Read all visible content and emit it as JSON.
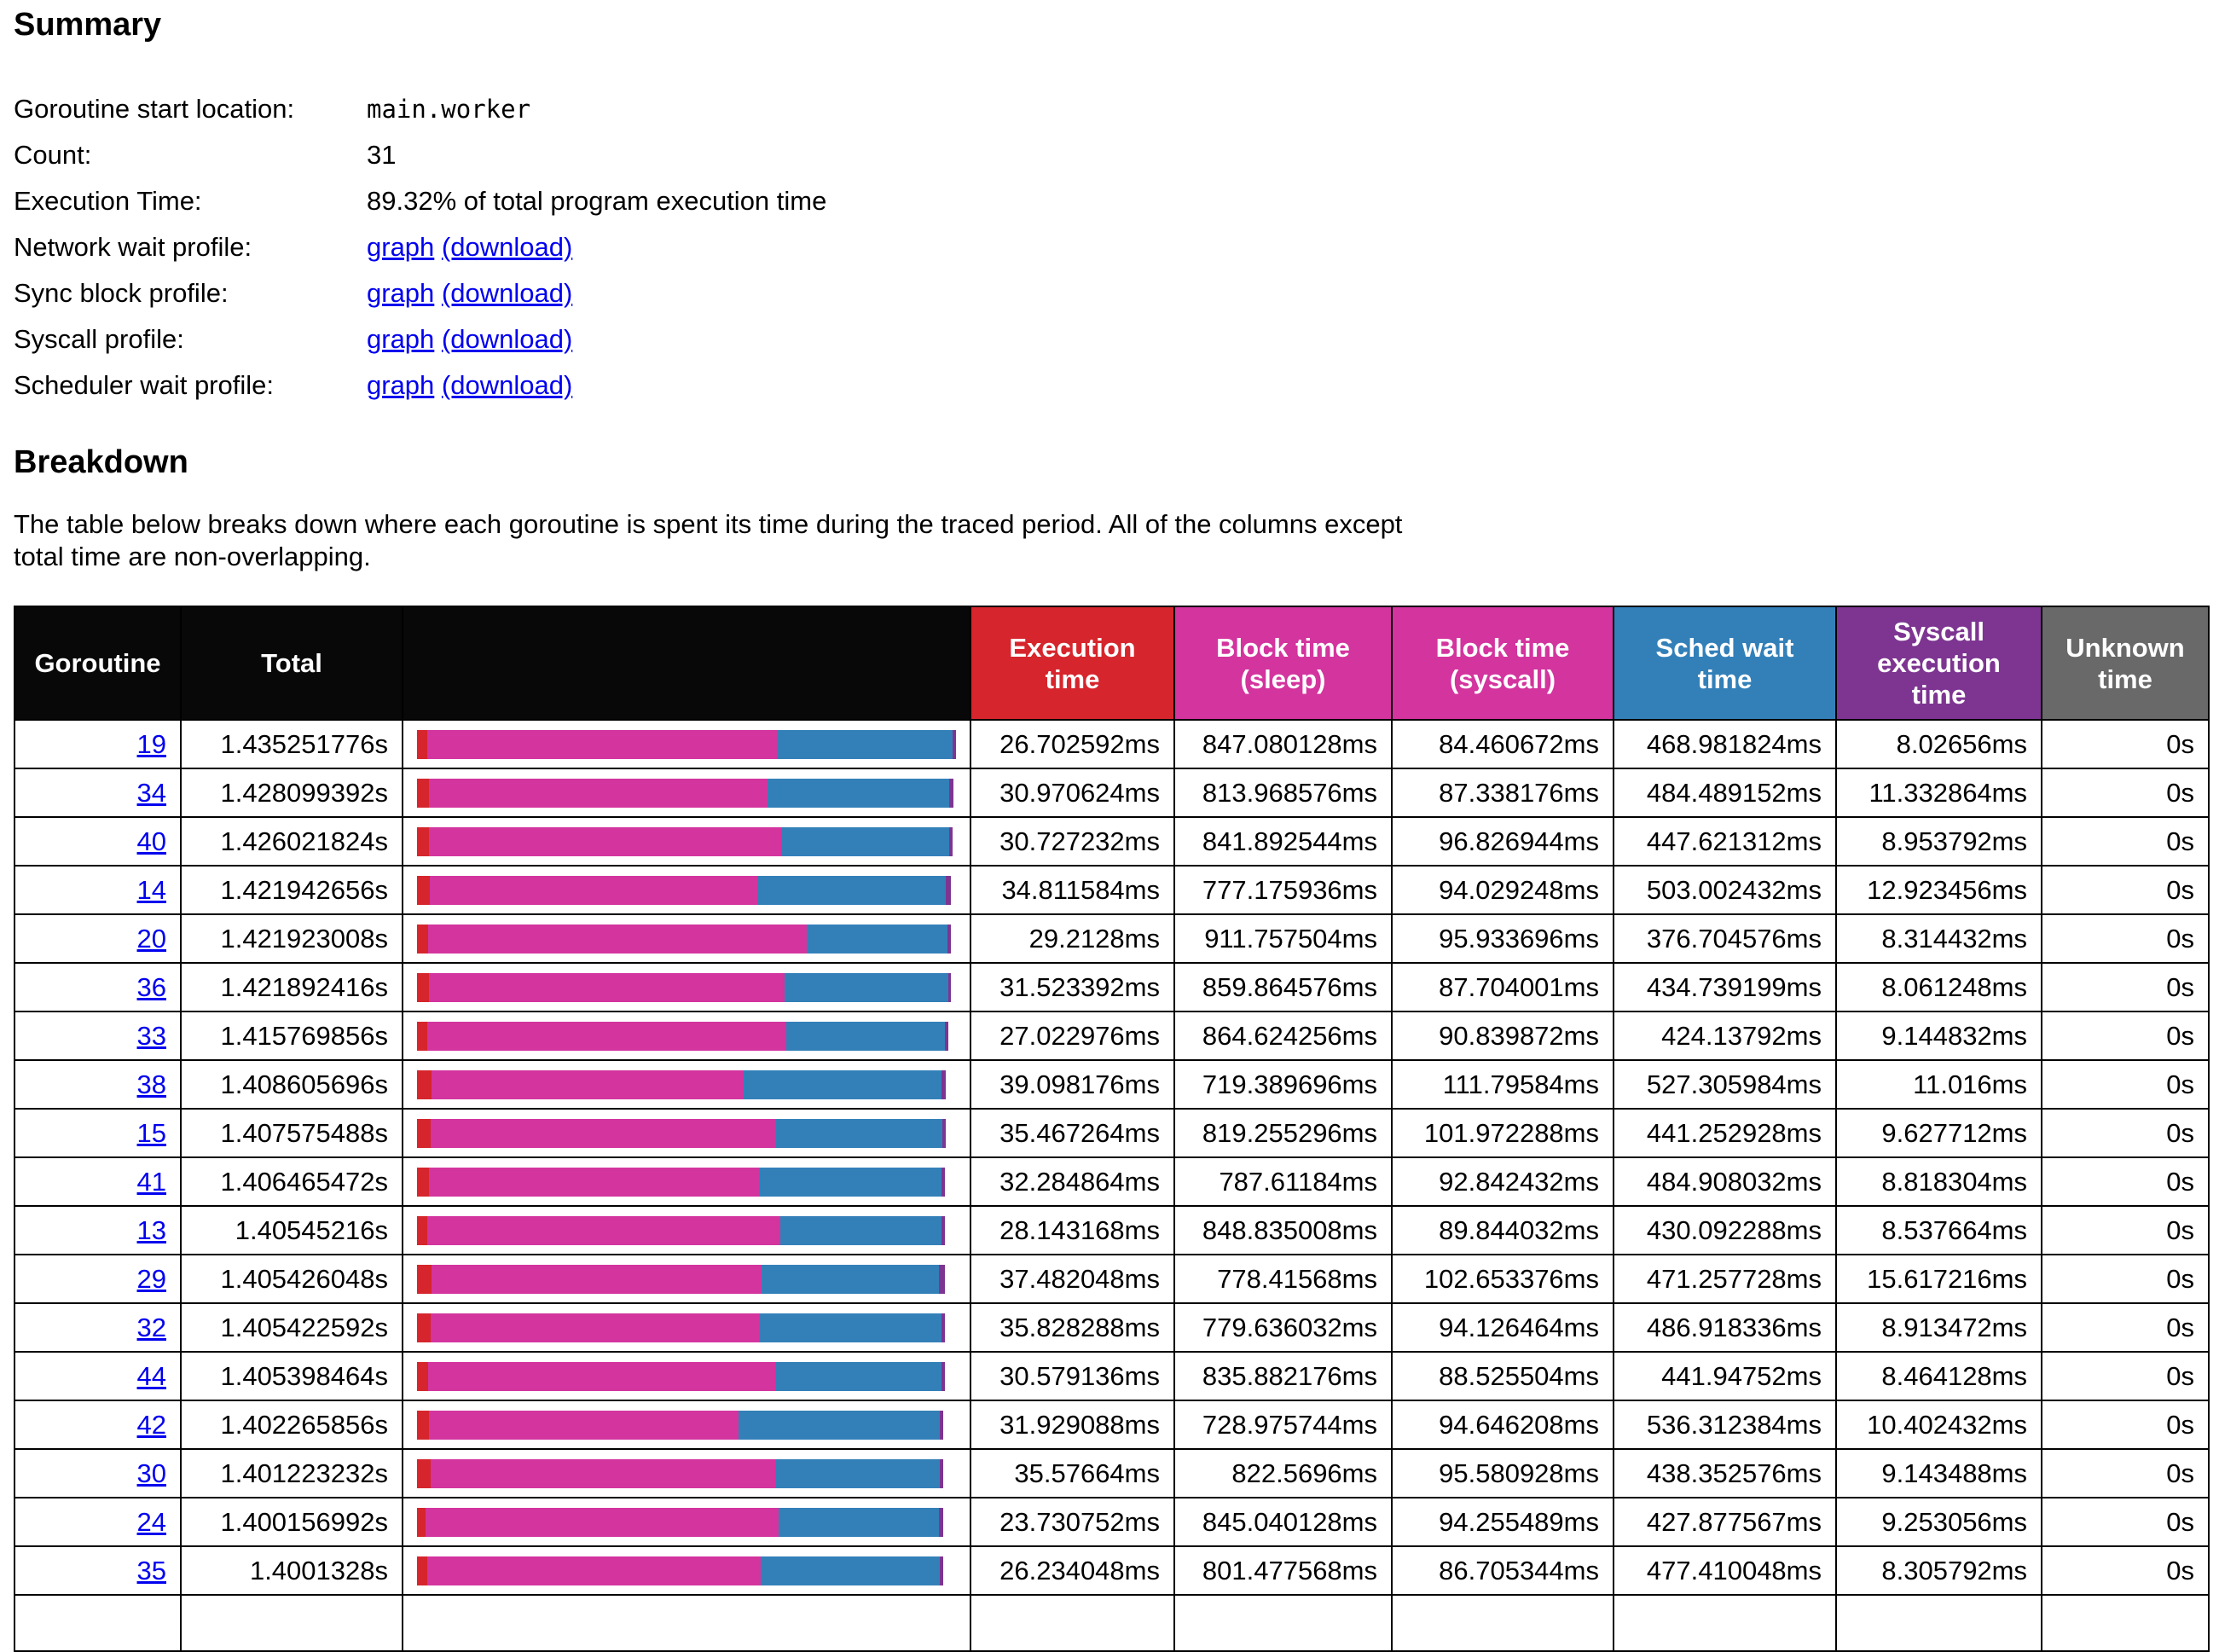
{
  "page": {
    "background": "#ffffff"
  },
  "summary": {
    "title": "Summary",
    "rows": [
      {
        "label": "Goroutine start location:",
        "value": "main.worker"
      },
      {
        "label": "Count:",
        "value": "31"
      },
      {
        "label": "Execution Time:",
        "value": "89.32% of total program execution time"
      },
      {
        "label": "Network wait profile:",
        "link_graph": "graph",
        "link_download": "(download)"
      },
      {
        "label": "Sync block profile:",
        "link_graph": "graph",
        "link_download": "(download)"
      },
      {
        "label": "Syscall profile:",
        "link_graph": "graph",
        "link_download": "(download)"
      },
      {
        "label": "Scheduler wait profile:",
        "link_graph": "graph",
        "link_download": "(download)"
      }
    ]
  },
  "breakdown": {
    "title": "Breakdown",
    "description_line1": "The table below breaks down where each goroutine is spent its time during the traced period. All of the columns except",
    "description_line2": "total time are non-overlapping."
  },
  "table": {
    "headers": {
      "goroutine": "Goroutine",
      "total": "Total",
      "bar": "",
      "exec": "Execution time",
      "block_sleep": "Block time (sleep)",
      "block_syscall": "Block time (syscall)",
      "sched_wait": "Sched wait time",
      "syscall_exec": "Syscall execution time",
      "unknown": "Unknown time"
    },
    "colors": {
      "header_dark": "#080808",
      "exec": "#d6252c",
      "block_sleep": "#d3349e",
      "block_syscall": "#d3349e",
      "sched_wait": "#3380b9",
      "syscall_exec": "#7d3591",
      "unknown": "#696969",
      "link": "#0000ee"
    },
    "rows": [
      {
        "id": "19",
        "total": "1.435251776s",
        "exec": "26.702592ms",
        "block_sleep": "847.080128ms",
        "block_syscall": "84.460672ms",
        "sched_wait": "468.981824ms",
        "syscall_exec": "8.02656ms",
        "unknown": "0s"
      },
      {
        "id": "34",
        "total": "1.428099392s",
        "exec": "30.970624ms",
        "block_sleep": "813.968576ms",
        "block_syscall": "87.338176ms",
        "sched_wait": "484.489152ms",
        "syscall_exec": "11.332864ms",
        "unknown": "0s"
      },
      {
        "id": "40",
        "total": "1.426021824s",
        "exec": "30.727232ms",
        "block_sleep": "841.892544ms",
        "block_syscall": "96.826944ms",
        "sched_wait": "447.621312ms",
        "syscall_exec": "8.953792ms",
        "unknown": "0s"
      },
      {
        "id": "14",
        "total": "1.421942656s",
        "exec": "34.811584ms",
        "block_sleep": "777.175936ms",
        "block_syscall": "94.029248ms",
        "sched_wait": "503.002432ms",
        "syscall_exec": "12.923456ms",
        "unknown": "0s"
      },
      {
        "id": "20",
        "total": "1.421923008s",
        "exec": "29.2128ms",
        "block_sleep": "911.757504ms",
        "block_syscall": "95.933696ms",
        "sched_wait": "376.704576ms",
        "syscall_exec": "8.314432ms",
        "unknown": "0s"
      },
      {
        "id": "36",
        "total": "1.421892416s",
        "exec": "31.523392ms",
        "block_sleep": "859.864576ms",
        "block_syscall": "87.704001ms",
        "sched_wait": "434.739199ms",
        "syscall_exec": "8.061248ms",
        "unknown": "0s"
      },
      {
        "id": "33",
        "total": "1.415769856s",
        "exec": "27.022976ms",
        "block_sleep": "864.624256ms",
        "block_syscall": "90.839872ms",
        "sched_wait": "424.13792ms",
        "syscall_exec": "9.144832ms",
        "unknown": "0s"
      },
      {
        "id": "38",
        "total": "1.408605696s",
        "exec": "39.098176ms",
        "block_sleep": "719.389696ms",
        "block_syscall": "111.79584ms",
        "sched_wait": "527.305984ms",
        "syscall_exec": "11.016ms",
        "unknown": "0s"
      },
      {
        "id": "15",
        "total": "1.407575488s",
        "exec": "35.467264ms",
        "block_sleep": "819.255296ms",
        "block_syscall": "101.972288ms",
        "sched_wait": "441.252928ms",
        "syscall_exec": "9.627712ms",
        "unknown": "0s"
      },
      {
        "id": "41",
        "total": "1.406465472s",
        "exec": "32.284864ms",
        "block_sleep": "787.61184ms",
        "block_syscall": "92.842432ms",
        "sched_wait": "484.908032ms",
        "syscall_exec": "8.818304ms",
        "unknown": "0s"
      },
      {
        "id": "13",
        "total": "1.40545216s",
        "exec": "28.143168ms",
        "block_sleep": "848.835008ms",
        "block_syscall": "89.844032ms",
        "sched_wait": "430.092288ms",
        "syscall_exec": "8.537664ms",
        "unknown": "0s"
      },
      {
        "id": "29",
        "total": "1.405426048s",
        "exec": "37.482048ms",
        "block_sleep": "778.41568ms",
        "block_syscall": "102.653376ms",
        "sched_wait": "471.257728ms",
        "syscall_exec": "15.617216ms",
        "unknown": "0s"
      },
      {
        "id": "32",
        "total": "1.405422592s",
        "exec": "35.828288ms",
        "block_sleep": "779.636032ms",
        "block_syscall": "94.126464ms",
        "sched_wait": "486.918336ms",
        "syscall_exec": "8.913472ms",
        "unknown": "0s"
      },
      {
        "id": "44",
        "total": "1.405398464s",
        "exec": "30.579136ms",
        "block_sleep": "835.882176ms",
        "block_syscall": "88.525504ms",
        "sched_wait": "441.94752ms",
        "syscall_exec": "8.464128ms",
        "unknown": "0s"
      },
      {
        "id": "42",
        "total": "1.402265856s",
        "exec": "31.929088ms",
        "block_sleep": "728.975744ms",
        "block_syscall": "94.646208ms",
        "sched_wait": "536.312384ms",
        "syscall_exec": "10.402432ms",
        "unknown": "0s"
      },
      {
        "id": "30",
        "total": "1.401223232s",
        "exec": "35.57664ms",
        "block_sleep": "822.5696ms",
        "block_syscall": "95.580928ms",
        "sched_wait": "438.352576ms",
        "syscall_exec": "9.143488ms",
        "unknown": "0s"
      },
      {
        "id": "24",
        "total": "1.400156992s",
        "exec": "23.730752ms",
        "block_sleep": "845.040128ms",
        "block_syscall": "94.255489ms",
        "sched_wait": "427.877567ms",
        "syscall_exec": "9.253056ms",
        "unknown": "0s"
      },
      {
        "id": "35",
        "total": "1.4001328s",
        "exec": "26.234048ms",
        "block_sleep": "801.477568ms",
        "block_syscall": "86.705344ms",
        "sched_wait": "477.410048ms",
        "syscall_exec": "8.305792ms",
        "unknown": "0s"
      }
    ]
  }
}
